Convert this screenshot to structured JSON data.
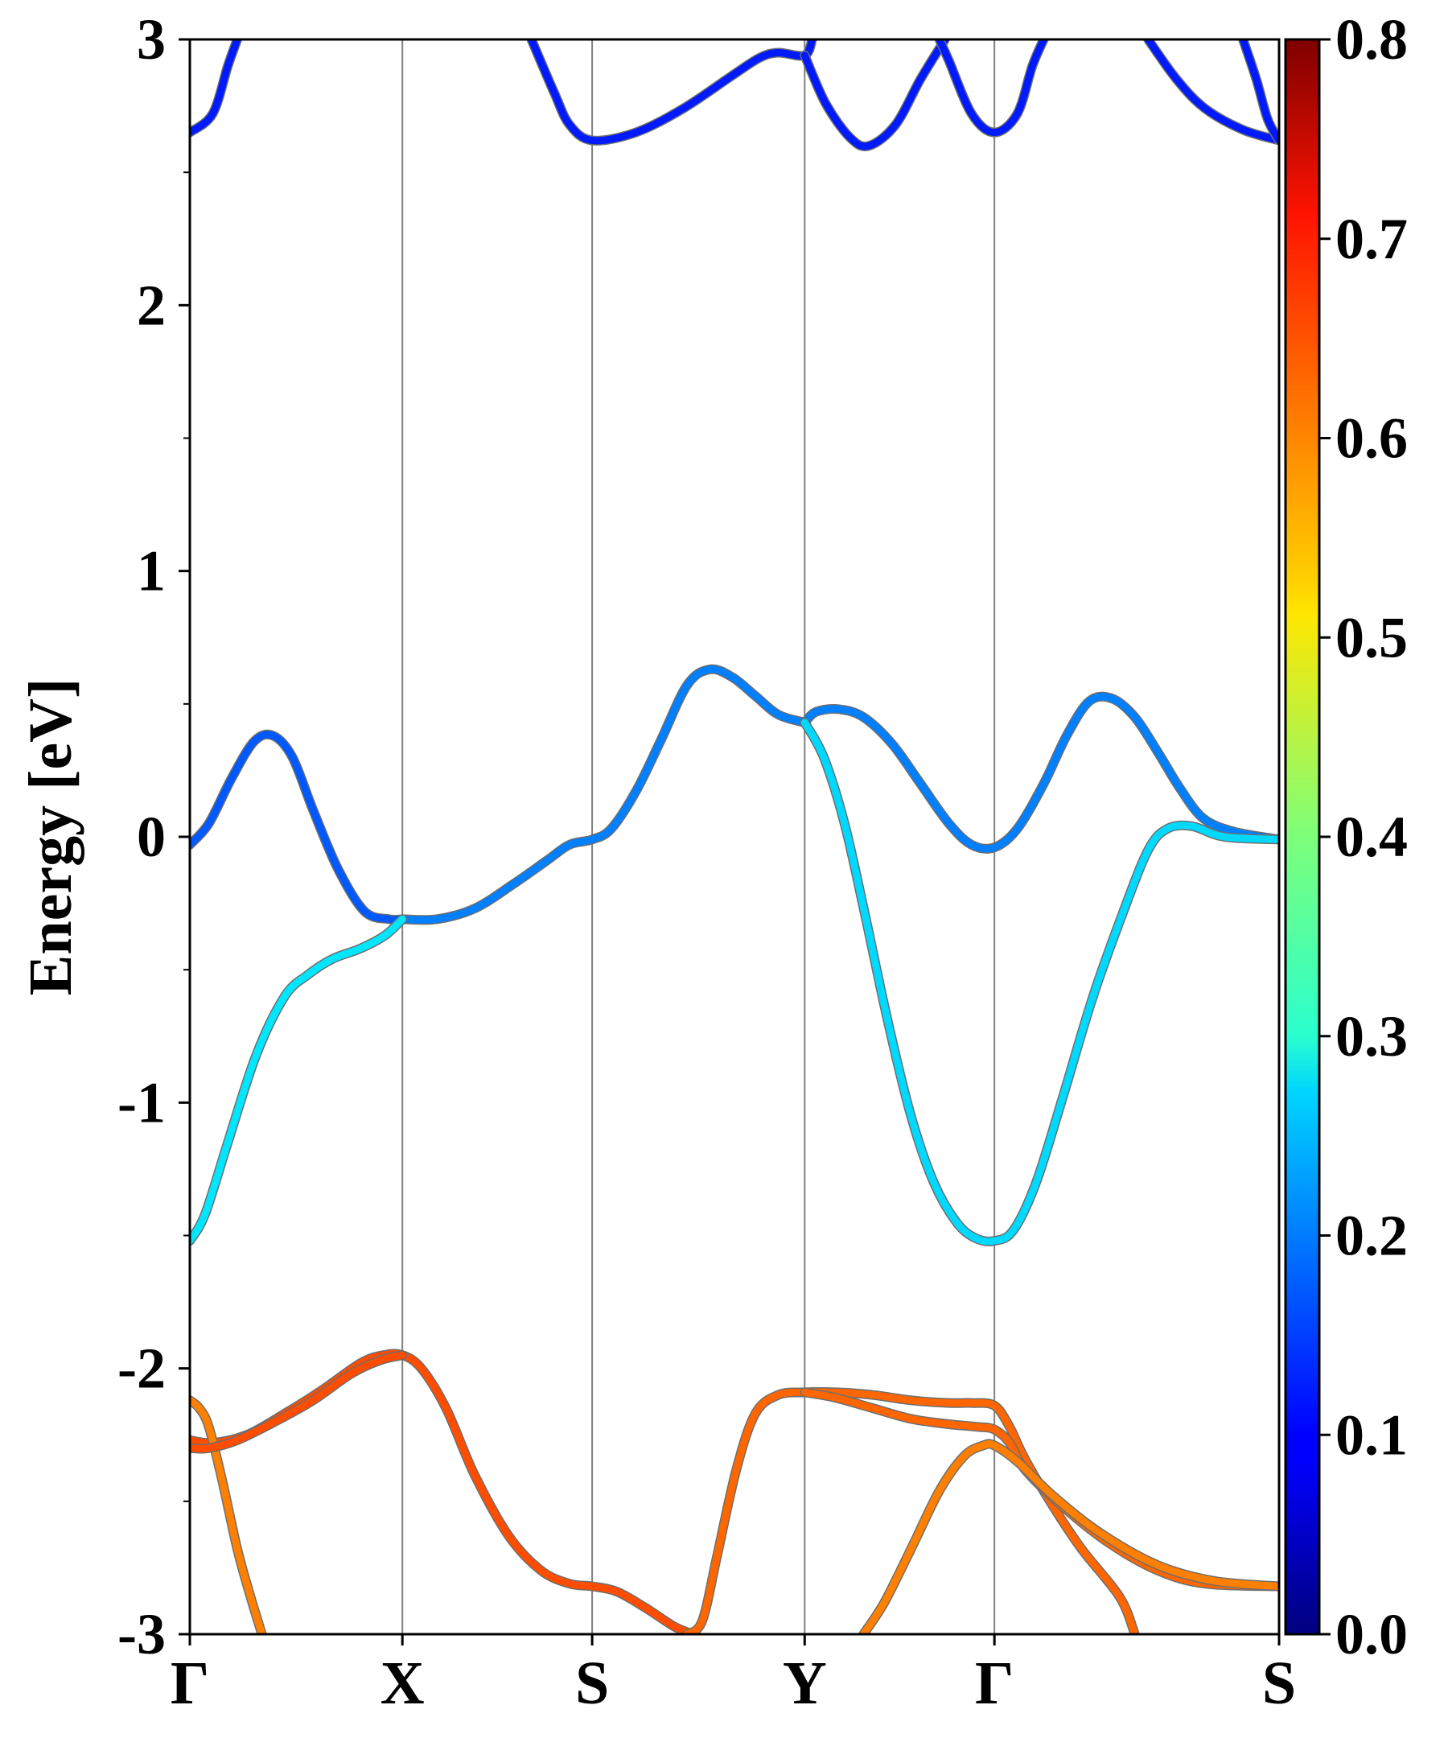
{
  "chart_data": {
    "type": "line",
    "title": "",
    "xlabel": "",
    "ylabel": "Energy [eV]",
    "ylim": [
      -3,
      3
    ],
    "xlim": [
      0,
      5.74
    ],
    "grid": false,
    "k_points": [
      {
        "label": "Γ",
        "x": 0.0
      },
      {
        "label": "X",
        "x": 1.12
      },
      {
        "label": "S",
        "x": 2.12
      },
      {
        "label": "Y",
        "x": 3.24
      },
      {
        "label": "Γ",
        "x": 4.24
      },
      {
        "label": "S",
        "x": 5.74
      }
    ],
    "yticks": [
      {
        "value": 3,
        "label": "3"
      },
      {
        "value": 2,
        "label": "2"
      },
      {
        "value": 1,
        "label": "1"
      },
      {
        "value": 0,
        "label": "0"
      },
      {
        "value": -1,
        "label": "-1"
      },
      {
        "value": -2,
        "label": "-2"
      },
      {
        "value": -3,
        "label": "-3"
      }
    ],
    "yminor": [
      2.5,
      1.5,
      0.5,
      -0.5,
      -1.5,
      -2.5
    ],
    "colorbar": {
      "min": 0.0,
      "max": 0.8,
      "colormap": "jet",
      "ticks": [
        {
          "value": 0.8,
          "label": "0.8"
        },
        {
          "value": 0.7,
          "label": "0.7"
        },
        {
          "value": 0.6,
          "label": "0.6"
        },
        {
          "value": 0.5,
          "label": "0.5"
        },
        {
          "value": 0.4,
          "label": "0.4"
        },
        {
          "value": 0.3,
          "label": "0.3"
        },
        {
          "value": 0.2,
          "label": "0.2"
        },
        {
          "value": 0.1,
          "label": "0.1"
        },
        {
          "value": 0.0,
          "label": "0.0"
        }
      ]
    },
    "series": [
      {
        "name": "band-cond-1",
        "weight": 0.12,
        "points": [
          [
            0,
            2.65
          ],
          [
            0.12,
            2.72
          ],
          [
            0.2,
            2.9
          ],
          [
            0.25,
            3.0
          ]
        ]
      },
      {
        "name": "band-cond-2",
        "weight": 0.12,
        "points": [
          [
            1.8,
            3.0
          ],
          [
            1.92,
            2.8
          ],
          [
            2.0,
            2.68
          ],
          [
            2.12,
            2.62
          ],
          [
            2.35,
            2.65
          ],
          [
            2.6,
            2.74
          ],
          [
            2.85,
            2.86
          ],
          [
            3.0,
            2.93
          ],
          [
            3.1,
            2.95
          ],
          [
            3.24,
            2.94
          ],
          [
            3.28,
            3.0
          ]
        ]
      },
      {
        "name": "band-cond-3",
        "weight": 0.12,
        "points": [
          [
            3.24,
            2.94
          ],
          [
            3.35,
            2.76
          ],
          [
            3.48,
            2.63
          ],
          [
            3.58,
            2.6
          ],
          [
            3.72,
            2.68
          ],
          [
            3.85,
            2.85
          ],
          [
            3.98,
            3.0
          ]
        ]
      },
      {
        "name": "band-cond-4",
        "weight": 0.12,
        "points": [
          [
            3.95,
            3.0
          ],
          [
            4.0,
            2.92
          ],
          [
            4.12,
            2.72
          ],
          [
            4.24,
            2.65
          ],
          [
            4.36,
            2.72
          ],
          [
            4.44,
            2.9
          ],
          [
            4.5,
            3.0
          ]
        ]
      },
      {
        "name": "band-cond-5",
        "weight": 0.12,
        "points": [
          [
            5.05,
            3.0
          ],
          [
            5.2,
            2.85
          ],
          [
            5.35,
            2.74
          ],
          [
            5.55,
            2.66
          ],
          [
            5.74,
            2.62
          ]
        ]
      },
      {
        "name": "band-cond-6",
        "weight": 0.12,
        "points": [
          [
            5.55,
            3.0
          ],
          [
            5.62,
            2.85
          ],
          [
            5.68,
            2.7
          ],
          [
            5.74,
            2.62
          ]
        ]
      },
      {
        "name": "band-vb-1",
        "weight": 0.17,
        "points": [
          [
            0,
            -0.03
          ],
          [
            0.1,
            0.05
          ],
          [
            0.22,
            0.22
          ],
          [
            0.34,
            0.36
          ],
          [
            0.44,
            0.38
          ],
          [
            0.54,
            0.3
          ],
          [
            0.65,
            0.1
          ],
          [
            0.78,
            -0.12
          ],
          [
            0.92,
            -0.28
          ],
          [
            1.05,
            -0.31
          ],
          [
            1.12,
            -0.31
          ]
        ]
      },
      {
        "name": "band-vb-2",
        "weight": 0.2,
        "points": [
          [
            1.12,
            -0.31
          ],
          [
            1.3,
            -0.31
          ],
          [
            1.5,
            -0.27
          ],
          [
            1.7,
            -0.18
          ],
          [
            1.88,
            -0.09
          ],
          [
            2.0,
            -0.03
          ],
          [
            2.12,
            -0.01
          ],
          [
            2.22,
            0.03
          ],
          [
            2.35,
            0.17
          ],
          [
            2.48,
            0.36
          ],
          [
            2.62,
            0.57
          ],
          [
            2.74,
            0.63
          ],
          [
            2.86,
            0.6
          ],
          [
            2.98,
            0.53
          ],
          [
            3.1,
            0.46
          ],
          [
            3.24,
            0.43
          ]
        ]
      },
      {
        "name": "band-vb-3",
        "weight": 0.2,
        "points": [
          [
            3.24,
            0.43
          ],
          [
            3.3,
            0.47
          ],
          [
            3.42,
            0.48
          ],
          [
            3.55,
            0.45
          ],
          [
            3.7,
            0.35
          ],
          [
            3.85,
            0.2
          ],
          [
            4.0,
            0.05
          ],
          [
            4.12,
            -0.03
          ],
          [
            4.24,
            -0.04
          ],
          [
            4.36,
            0.03
          ],
          [
            4.5,
            0.2
          ],
          [
            4.62,
            0.38
          ],
          [
            4.74,
            0.51
          ],
          [
            4.86,
            0.52
          ],
          [
            4.98,
            0.45
          ],
          [
            5.1,
            0.32
          ],
          [
            5.22,
            0.18
          ],
          [
            5.34,
            0.07
          ],
          [
            5.5,
            0.02
          ],
          [
            5.74,
            -0.01
          ]
        ]
      },
      {
        "name": "band-vb-4",
        "weight": 0.28,
        "points": [
          [
            0,
            -1.52
          ],
          [
            0.08,
            -1.42
          ],
          [
            0.2,
            -1.15
          ],
          [
            0.35,
            -0.82
          ],
          [
            0.5,
            -0.6
          ],
          [
            0.62,
            -0.52
          ],
          [
            0.75,
            -0.46
          ],
          [
            0.9,
            -0.42
          ],
          [
            1.03,
            -0.37
          ],
          [
            1.12,
            -0.31
          ]
        ]
      },
      {
        "name": "band-vb-5",
        "weight": 0.27,
        "points": [
          [
            3.24,
            0.43
          ],
          [
            3.34,
            0.3
          ],
          [
            3.45,
            0.05
          ],
          [
            3.56,
            -0.3
          ],
          [
            3.68,
            -0.7
          ],
          [
            3.8,
            -1.05
          ],
          [
            3.92,
            -1.3
          ],
          [
            4.04,
            -1.45
          ],
          [
            4.14,
            -1.51
          ],
          [
            4.24,
            -1.52
          ],
          [
            4.34,
            -1.48
          ],
          [
            4.46,
            -1.3
          ],
          [
            4.6,
            -0.98
          ],
          [
            4.76,
            -0.6
          ],
          [
            4.92,
            -0.28
          ],
          [
            5.05,
            -0.05
          ],
          [
            5.15,
            0.03
          ],
          [
            5.28,
            0.04
          ],
          [
            5.45,
            0.0
          ],
          [
            5.74,
            -0.01
          ]
        ]
      },
      {
        "name": "band-d-1",
        "weight": 0.64,
        "points": [
          [
            0,
            -2.27
          ],
          [
            0.12,
            -2.28
          ],
          [
            0.3,
            -2.25
          ],
          [
            0.5,
            -2.17
          ],
          [
            0.7,
            -2.08
          ],
          [
            0.9,
            -1.98
          ],
          [
            1.02,
            -1.95
          ],
          [
            1.12,
            -1.95
          ],
          [
            1.22,
            -2.0
          ],
          [
            1.35,
            -2.15
          ],
          [
            1.5,
            -2.4
          ],
          [
            1.68,
            -2.63
          ],
          [
            1.85,
            -2.76
          ],
          [
            2.0,
            -2.81
          ],
          [
            2.12,
            -2.82
          ],
          [
            2.25,
            -2.84
          ],
          [
            2.4,
            -2.9
          ],
          [
            2.55,
            -2.97
          ],
          [
            2.65,
            -3.0
          ]
        ]
      },
      {
        "name": "band-d-2",
        "weight": 0.62,
        "points": [
          [
            2.62,
            -3.0
          ],
          [
            2.7,
            -2.95
          ],
          [
            2.78,
            -2.7
          ],
          [
            2.88,
            -2.38
          ],
          [
            2.98,
            -2.17
          ],
          [
            3.1,
            -2.1
          ],
          [
            3.24,
            -2.09
          ],
          [
            3.4,
            -2.09
          ],
          [
            3.6,
            -2.1
          ],
          [
            3.8,
            -2.12
          ],
          [
            4.0,
            -2.13
          ],
          [
            4.12,
            -2.13
          ],
          [
            4.24,
            -2.14
          ],
          [
            4.32,
            -2.22
          ],
          [
            4.4,
            -2.34
          ],
          [
            4.55,
            -2.52
          ],
          [
            4.7,
            -2.68
          ],
          [
            4.9,
            -2.86
          ],
          [
            4.98,
            -3.0
          ]
        ]
      },
      {
        "name": "band-d-3",
        "weight": 0.62,
        "points": [
          [
            3.24,
            -2.09
          ],
          [
            3.4,
            -2.11
          ],
          [
            3.6,
            -2.15
          ],
          [
            3.8,
            -2.19
          ],
          [
            4.0,
            -2.21
          ],
          [
            4.15,
            -2.22
          ],
          [
            4.24,
            -2.23
          ],
          [
            4.32,
            -2.28
          ],
          [
            4.4,
            -2.38
          ],
          [
            4.6,
            -2.52
          ],
          [
            4.85,
            -2.66
          ],
          [
            5.1,
            -2.76
          ],
          [
            5.35,
            -2.81
          ],
          [
            5.74,
            -2.82
          ]
        ]
      },
      {
        "name": "band-d-4",
        "weight": 0.6,
        "points": [
          [
            3.55,
            -3.0
          ],
          [
            3.66,
            -2.88
          ],
          [
            3.8,
            -2.68
          ],
          [
            3.95,
            -2.46
          ],
          [
            4.08,
            -2.33
          ],
          [
            4.18,
            -2.29
          ],
          [
            4.24,
            -2.29
          ],
          [
            4.36,
            -2.35
          ],
          [
            4.55,
            -2.48
          ],
          [
            4.8,
            -2.62
          ],
          [
            5.1,
            -2.74
          ],
          [
            5.4,
            -2.8
          ],
          [
            5.74,
            -2.82
          ]
        ]
      },
      {
        "name": "band-d-5",
        "weight": 0.6,
        "points": [
          [
            0,
            -2.12
          ],
          [
            0.05,
            -2.15
          ],
          [
            0.1,
            -2.22
          ],
          [
            0.17,
            -2.42
          ],
          [
            0.25,
            -2.68
          ],
          [
            0.32,
            -2.86
          ],
          [
            0.38,
            -3.0
          ]
        ]
      },
      {
        "name": "band-d-6",
        "weight": 0.64,
        "points": [
          [
            0,
            -2.3
          ],
          [
            0.1,
            -2.3
          ],
          [
            0.25,
            -2.27
          ],
          [
            0.45,
            -2.2
          ],
          [
            0.65,
            -2.12
          ],
          [
            0.85,
            -2.02
          ],
          [
            1.0,
            -1.97
          ],
          [
            1.12,
            -1.95
          ]
        ]
      }
    ]
  }
}
